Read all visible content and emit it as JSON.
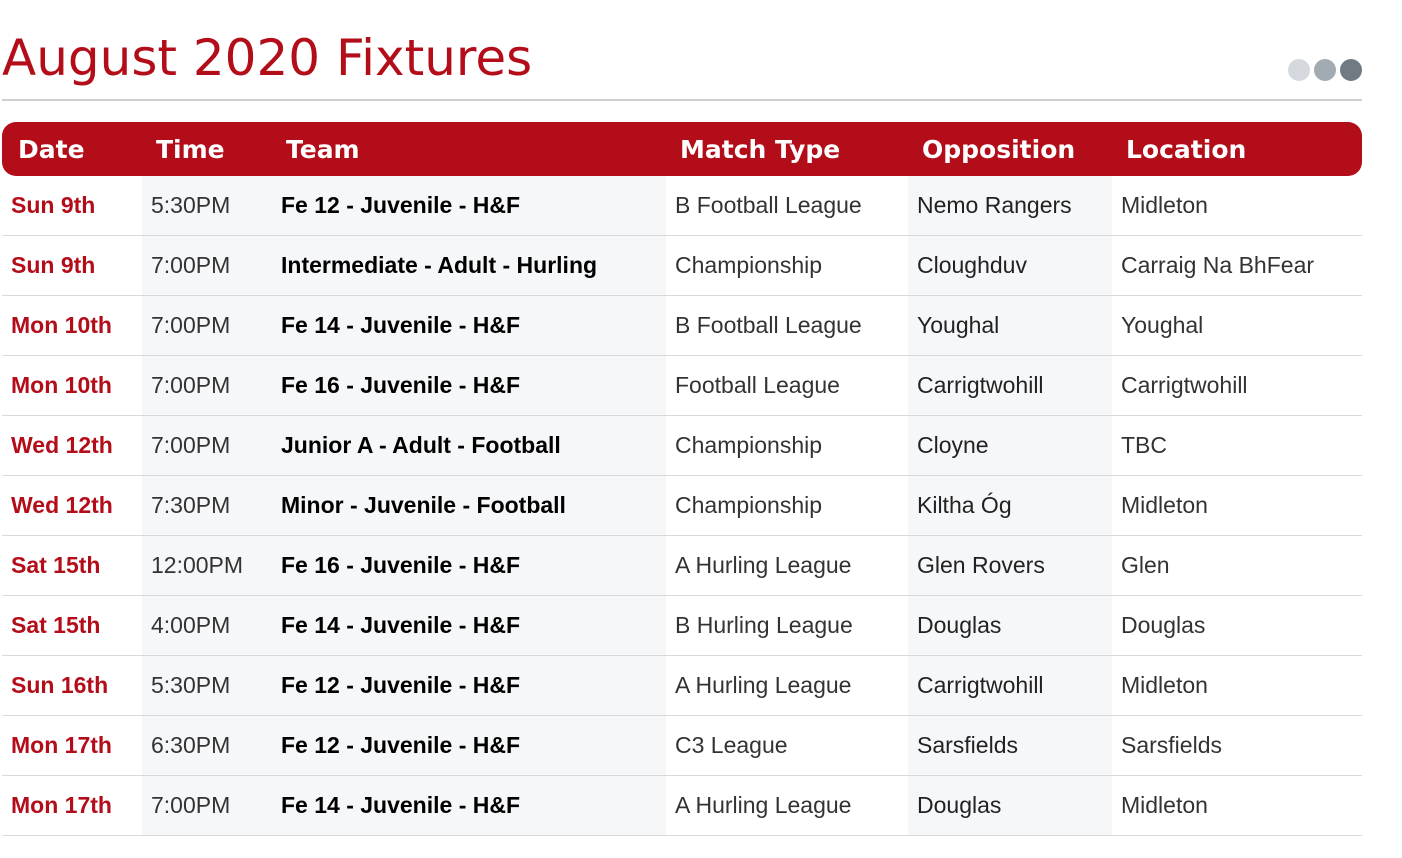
{
  "page": {
    "title": "August 2020 Fixtures"
  },
  "pager": {
    "dots": [
      {
        "name": "pager-dot-1",
        "color": "#d5d9dd"
      },
      {
        "name": "pager-dot-2",
        "color": "#a3abb2"
      },
      {
        "name": "pager-dot-3",
        "color": "#6f7a83"
      }
    ]
  },
  "colors": {
    "accent": "#b40d1a",
    "row_shade": "#f6f7f9"
  },
  "table": {
    "columns": [
      "Date",
      "Time",
      "Team",
      "Match Type",
      "Opposition",
      "Location"
    ],
    "rows": [
      {
        "date": "Sun 9th",
        "time": "5:30PM",
        "team": "Fe 12 - Juvenile - H&F",
        "match_type": "B Football League",
        "opposition": "Nemo Rangers",
        "location": "Midleton"
      },
      {
        "date": "Sun 9th",
        "time": "7:00PM",
        "team": "Intermediate - Adult - Hurling",
        "match_type": "Championship",
        "opposition": "Cloughduv",
        "location": "Carraig Na BhFear"
      },
      {
        "date": "Mon 10th",
        "time": "7:00PM",
        "team": "Fe 14 - Juvenile - H&F",
        "match_type": "B Football League",
        "opposition": "Youghal",
        "location": "Youghal"
      },
      {
        "date": "Mon 10th",
        "time": "7:00PM",
        "team": "Fe 16 - Juvenile - H&F",
        "match_type": "Football League",
        "opposition": "Carrigtwohill",
        "location": "Carrigtwohill"
      },
      {
        "date": "Wed 12th",
        "time": "7:00PM",
        "team": "Junior A - Adult - Football",
        "match_type": "Championship",
        "opposition": "Cloyne",
        "location": "TBC"
      },
      {
        "date": "Wed 12th",
        "time": "7:30PM",
        "team": "Minor - Juvenile - Football",
        "match_type": "Championship",
        "opposition": "Kiltha Óg",
        "location": "Midleton"
      },
      {
        "date": "Sat 15th",
        "time": "12:00PM",
        "team": "Fe 16 - Juvenile - H&F",
        "match_type": "A Hurling League",
        "opposition": "Glen Rovers",
        "location": "Glen"
      },
      {
        "date": "Sat 15th",
        "time": "4:00PM",
        "team": "Fe 14 - Juvenile - H&F",
        "match_type": "B Hurling League",
        "opposition": "Douglas",
        "location": "Douglas"
      },
      {
        "date": "Sun 16th",
        "time": "5:30PM",
        "team": "Fe 12 - Juvenile - H&F",
        "match_type": "A Hurling League",
        "opposition": "Carrigtwohill",
        "location": "Midleton"
      },
      {
        "date": "Mon 17th",
        "time": "6:30PM",
        "team": "Fe 12 - Juvenile - H&F",
        "match_type": "C3 League",
        "opposition": "Sarsfields",
        "location": "Sarsfields"
      },
      {
        "date": "Mon 17th",
        "time": "7:00PM",
        "team": "Fe 14 - Juvenile - H&F",
        "match_type": "A Hurling League",
        "opposition": "Douglas",
        "location": "Midleton"
      }
    ]
  }
}
